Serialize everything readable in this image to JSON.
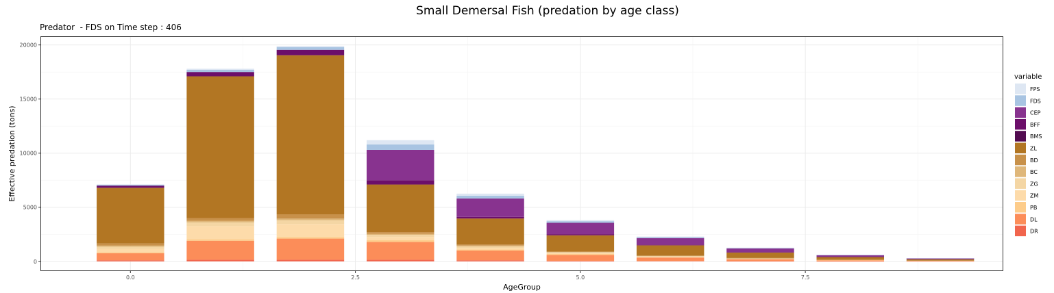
{
  "chart_data": {
    "type": "bar",
    "stacked": true,
    "title": "Small Demersal Fish (predation by age class)",
    "subtitle": "Predator  - FDS on Time step : 406",
    "xlabel": "AgeGroup",
    "ylabel": "Effective predation (tons)",
    "xlim": [
      -1.0,
      9.7
    ],
    "ylim": [
      -900,
      20800
    ],
    "x_ticks": [
      0.0,
      2.5,
      5.0,
      7.5
    ],
    "x_tick_labels": [
      "0.0",
      "2.5",
      "5.0",
      "7.5"
    ],
    "y_ticks": [
      0,
      5000,
      10000,
      15000,
      20000
    ],
    "y_tick_labels": [
      "0",
      "5000",
      "10000",
      "15000",
      "20000"
    ],
    "grid": true,
    "legend": {
      "title": "variable",
      "position": "right"
    },
    "x": [
      0,
      1,
      2,
      3,
      4,
      5,
      6,
      7,
      8,
      9
    ],
    "bar_width": 0.75,
    "series": [
      {
        "name": "DR",
        "color": "#F1654D",
        "values": [
          100,
          150,
          150,
          150,
          100,
          50,
          30,
          20,
          10,
          5
        ]
      },
      {
        "name": "DL",
        "color": "#FC8D59",
        "values": [
          650,
          1750,
          1950,
          1650,
          900,
          550,
          320,
          180,
          90,
          45
        ]
      },
      {
        "name": "PB",
        "color": "#FDCC8A",
        "values": [
          100,
          150,
          150,
          150,
          100,
          80,
          50,
          30,
          15,
          10
        ]
      },
      {
        "name": "ZM",
        "color": "#FDDBAA",
        "values": [
          300,
          1200,
          1200,
          300,
          150,
          80,
          50,
          30,
          15,
          10
        ]
      },
      {
        "name": "ZG",
        "color": "#F4D6A4",
        "values": [
          200,
          350,
          350,
          200,
          130,
          60,
          30,
          20,
          10,
          5
        ]
      },
      {
        "name": "BC",
        "color": "#DFB77A",
        "values": [
          100,
          150,
          150,
          100,
          80,
          40,
          20,
          10,
          5,
          5
        ]
      },
      {
        "name": "BD",
        "color": "#C8914A",
        "values": [
          200,
          250,
          400,
          150,
          100,
          50,
          30,
          20,
          10,
          5
        ]
      },
      {
        "name": "ZL",
        "color": "#B27623",
        "values": [
          5150,
          13100,
          14700,
          4400,
          2400,
          1500,
          950,
          500,
          250,
          120
        ]
      },
      {
        "name": "BMS",
        "color": "#520B50",
        "values": [
          0,
          0,
          0,
          0,
          0,
          0,
          0,
          0,
          0,
          0
        ]
      },
      {
        "name": "BFF",
        "color": "#6C0F6A",
        "values": [
          200,
          400,
          500,
          400,
          150,
          100,
          70,
          40,
          20,
          10
        ]
      },
      {
        "name": "CEP",
        "color": "#88338F",
        "values": [
          0,
          0,
          0,
          2800,
          1700,
          1050,
          600,
          350,
          150,
          70
        ]
      },
      {
        "name": "FDS",
        "color": "#A8C4E2",
        "values": [
          80,
          200,
          250,
          500,
          250,
          150,
          80,
          40,
          20,
          10
        ]
      },
      {
        "name": "FPS",
        "color": "#DEE7F3",
        "values": [
          40,
          100,
          100,
          400,
          200,
          100,
          60,
          30,
          15,
          5
        ]
      }
    ],
    "legend_order": [
      "FPS",
      "FDS",
      "CEP",
      "BFF",
      "BMS",
      "ZL",
      "BD",
      "BC",
      "ZG",
      "ZM",
      "PB",
      "DL",
      "DR"
    ]
  }
}
